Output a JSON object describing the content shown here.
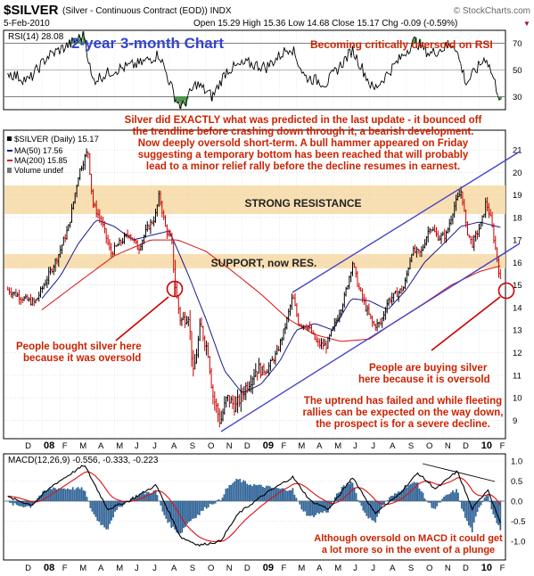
{
  "header": {
    "symbol": "$SILVER",
    "description": "(Silver - Continuous Contract (EOD)) INDX",
    "watermark": "© StockCharts.com",
    "date": "5-Feb-2010",
    "quote": "Open 15.29  High 15.36  Low 14.68  Close 15.17  Chg -0.09 (-0.59%)",
    "down_marker": "▼"
  },
  "rsi_panel": {
    "label": "RSI(14) 28.08",
    "ticks": [
      "70",
      "50",
      "30"
    ],
    "note": "Becoming critically oversold on RSI"
  },
  "price_panel": {
    "title_overlay": "2-year 3-month Chart",
    "legend": [
      "$SILVER (Daily) 15.17",
      "MA(50) 17.56",
      "MA(200) 15.85",
      "Volume undef"
    ],
    "resistance_label": "STRONG RESISTANCE",
    "support_label": "SUPPORT, now RES.",
    "y_ticks": [
      "21",
      "20",
      "19",
      "18",
      "17",
      "16",
      "15",
      "14",
      "13",
      "12",
      "11",
      "10",
      "9"
    ],
    "commentary": [
      "Silver did EXACTLY what was predicted in the last update - it bounced off",
      "the trendline before crashing down through it, a bearish development.",
      "Now deeply oversold short-term. A bull hammer appeared on Friday",
      "suggesting a temporary bottom has been reached that will probably",
      "lead to a minor relief rally before the decline resumes in earnest."
    ],
    "note_left": [
      "People bought silver here",
      "because it was oversold"
    ],
    "note_right": [
      "People are buying silver",
      "here because it is oversold"
    ],
    "note_uptrend": [
      "The uptrend has failed and while fleeting",
      "rallies can be expected on the way down,",
      "the prospect is for a severe decline."
    ]
  },
  "months": [
    "D",
    "08",
    "F",
    "M",
    "A",
    "M",
    "J",
    "J",
    "A",
    "S",
    "O",
    "N",
    "D",
    "09",
    "F",
    "M",
    "A",
    "M",
    "J",
    "J",
    "A",
    "S",
    "O",
    "N",
    "D",
    "10",
    "F"
  ],
  "macd_panel": {
    "label": "MACD(12,26,9) -0.556, -0.333, -0.223",
    "ticks": [
      "1.0",
      "0.5",
      "0.0",
      "-0.5",
      "-1.0"
    ],
    "note": [
      "Although oversold on MACD it could get",
      "a lot more so in the event of a plunge"
    ]
  },
  "colors": {
    "annotation": "#cc2200",
    "price_up": "#000000",
    "price_down": "#cc0000",
    "ma50": "#1a1a8c",
    "ma200": "#dd1111",
    "band": "#f7d9a4",
    "channel": "#4444cc",
    "title": "#3344cc",
    "histogram": "#336699",
    "rsi_fill": "#2e8b2e"
  },
  "chart_data": {
    "type": "line",
    "title": "2-year 3-month Chart",
    "x_range": [
      "2007-11",
      "2010-02-05"
    ],
    "series": [
      {
        "name": "$SILVER (Daily)",
        "points": [
          [
            "2007-11-05",
            14.8
          ],
          [
            "2007-12-01",
            14.4
          ],
          [
            "2007-12-20",
            14.2
          ],
          [
            "2008-01-10",
            15.3
          ],
          [
            "2008-01-28",
            16.3
          ],
          [
            "2008-02-15",
            17.6
          ],
          [
            "2008-03-03",
            20.0
          ],
          [
            "2008-03-12",
            20.6
          ],
          [
            "2008-03-18",
            21.0
          ],
          [
            "2008-03-26",
            18.6
          ],
          [
            "2008-04-10",
            17.8
          ],
          [
            "2008-04-25",
            16.4
          ],
          [
            "2008-05-08",
            16.8
          ],
          [
            "2008-05-26",
            17.3
          ],
          [
            "2008-06-10",
            16.6
          ],
          [
            "2008-06-25",
            17.5
          ],
          [
            "2008-07-08",
            18.0
          ],
          [
            "2008-07-15",
            19.0
          ],
          [
            "2008-07-25",
            17.6
          ],
          [
            "2008-08-05",
            16.8
          ],
          [
            "2008-08-12",
            14.6
          ],
          [
            "2008-08-20",
            13.4
          ],
          [
            "2008-09-02",
            13.7
          ],
          [
            "2008-09-10",
            11.0
          ],
          [
            "2008-09-22",
            13.2
          ],
          [
            "2008-10-05",
            12.0
          ],
          [
            "2008-10-12",
            10.2
          ],
          [
            "2008-10-25",
            8.9
          ],
          [
            "2008-11-05",
            10.0
          ],
          [
            "2008-11-20",
            9.6
          ],
          [
            "2008-12-05",
            10.4
          ],
          [
            "2008-12-25",
            11.3
          ],
          [
            "2009-01-10",
            11.2
          ],
          [
            "2009-01-28",
            12.0
          ],
          [
            "2009-02-10",
            13.1
          ],
          [
            "2009-02-23",
            14.5
          ],
          [
            "2009-03-05",
            13.3
          ],
          [
            "2009-03-20",
            13.2
          ],
          [
            "2009-04-05",
            12.4
          ],
          [
            "2009-04-20",
            12.3
          ],
          [
            "2009-05-05",
            13.3
          ],
          [
            "2009-05-20",
            14.4
          ],
          [
            "2009-06-03",
            16.0
          ],
          [
            "2009-06-12",
            15.0
          ],
          [
            "2009-06-25",
            14.0
          ],
          [
            "2009-07-08",
            13.2
          ],
          [
            "2009-07-20",
            13.3
          ],
          [
            "2009-08-01",
            14.3
          ],
          [
            "2009-08-15",
            14.6
          ],
          [
            "2009-08-28",
            14.9
          ],
          [
            "2009-09-10",
            16.5
          ],
          [
            "2009-09-25",
            16.4
          ],
          [
            "2009-10-10",
            17.6
          ],
          [
            "2009-10-25",
            17.1
          ],
          [
            "2009-11-06",
            17.2
          ],
          [
            "2009-11-20",
            18.5
          ],
          [
            "2009-12-02",
            19.2
          ],
          [
            "2009-12-10",
            17.5
          ],
          [
            "2009-12-20",
            16.8
          ],
          [
            "2010-01-05",
            17.8
          ],
          [
            "2010-01-12",
            18.7
          ],
          [
            "2010-01-20",
            17.9
          ],
          [
            "2010-01-28",
            16.6
          ],
          [
            "2010-02-05",
            15.17
          ]
        ]
      },
      {
        "name": "MA(50)",
        "points": [
          [
            "2008-01-01",
            14.4
          ],
          [
            "2008-02-01",
            15.4
          ],
          [
            "2008-03-01",
            16.8
          ],
          [
            "2008-04-01",
            17.9
          ],
          [
            "2008-05-01",
            17.6
          ],
          [
            "2008-06-01",
            17.0
          ],
          [
            "2008-07-01",
            17.2
          ],
          [
            "2008-08-01",
            17.4
          ],
          [
            "2008-09-01",
            15.5
          ],
          [
            "2008-10-01",
            13.5
          ],
          [
            "2008-11-01",
            11.2
          ],
          [
            "2008-12-01",
            10.2
          ],
          [
            "2009-01-01",
            10.6
          ],
          [
            "2009-02-01",
            11.6
          ],
          [
            "2009-03-01",
            13.0
          ],
          [
            "2009-04-01",
            13.3
          ],
          [
            "2009-05-01",
            13.0
          ],
          [
            "2009-06-01",
            14.4
          ],
          [
            "2009-07-01",
            14.3
          ],
          [
            "2009-08-01",
            13.9
          ],
          [
            "2009-09-01",
            14.8
          ],
          [
            "2009-10-01",
            16.0
          ],
          [
            "2009-11-01",
            16.8
          ],
          [
            "2009-12-01",
            17.6
          ],
          [
            "2010-01-01",
            17.8
          ],
          [
            "2010-02-05",
            17.56
          ]
        ]
      },
      {
        "name": "MA(200)",
        "points": [
          [
            "2008-01-01",
            13.9
          ],
          [
            "2008-03-01",
            15.1
          ],
          [
            "2008-05-01",
            16.3
          ],
          [
            "2008-07-01",
            17.0
          ],
          [
            "2008-08-15",
            17.0
          ],
          [
            "2008-10-01",
            16.5
          ],
          [
            "2008-11-15",
            15.6
          ],
          [
            "2009-01-01",
            14.6
          ],
          [
            "2009-02-15",
            13.5
          ],
          [
            "2009-04-01",
            12.8
          ],
          [
            "2009-05-15",
            12.5
          ],
          [
            "2009-07-01",
            12.6
          ],
          [
            "2009-08-15",
            13.4
          ],
          [
            "2009-10-01",
            14.2
          ],
          [
            "2009-11-15",
            15.0
          ],
          [
            "2010-01-01",
            15.6
          ],
          [
            "2010-02-05",
            15.85
          ]
        ]
      }
    ],
    "rsi": {
      "name": "RSI(14)",
      "ylim": [
        20,
        80
      ],
      "points": [
        [
          "2007-11-05",
          48
        ],
        [
          "2007-12-10",
          42
        ],
        [
          "2008-01-10",
          60
        ],
        [
          "2008-02-20",
          70
        ],
        [
          "2008-03-12",
          76
        ],
        [
          "2008-03-25",
          42
        ],
        [
          "2008-05-01",
          50
        ],
        [
          "2008-06-15",
          55
        ],
        [
          "2008-07-15",
          62
        ],
        [
          "2008-08-12",
          28
        ],
        [
          "2008-08-22",
          22
        ],
        [
          "2008-09-15",
          40
        ],
        [
          "2008-10-12",
          30
        ],
        [
          "2008-11-05",
          50
        ],
        [
          "2008-12-10",
          55
        ],
        [
          "2009-01-10",
          52
        ],
        [
          "2009-02-20",
          68
        ],
        [
          "2009-03-15",
          45
        ],
        [
          "2009-04-20",
          40
        ],
        [
          "2009-06-03",
          65
        ],
        [
          "2009-07-08",
          35
        ],
        [
          "2009-08-15",
          55
        ],
        [
          "2009-09-15",
          72
        ],
        [
          "2009-10-10",
          62
        ],
        [
          "2009-11-20",
          70
        ],
        [
          "2009-12-10",
          40
        ],
        [
          "2010-01-12",
          60
        ],
        [
          "2010-02-05",
          28.08
        ]
      ]
    },
    "macd": {
      "name": "MACD(12,26,9)",
      "ylim": [
        -1.2,
        1.2
      ],
      "points": [
        [
          "2007-11-05",
          0.1
        ],
        [
          "2007-12-15",
          -0.1
        ],
        [
          "2008-01-20",
          0.4
        ],
        [
          "2008-03-12",
          0.9
        ],
        [
          "2008-04-20",
          -0.2
        ],
        [
          "2008-05-25",
          0.0
        ],
        [
          "2008-07-10",
          0.4
        ],
        [
          "2008-08-20",
          -0.9
        ],
        [
          "2008-09-20",
          -1.1
        ],
        [
          "2008-10-25",
          -1.0
        ],
        [
          "2008-11-25",
          -0.3
        ],
        [
          "2009-01-10",
          0.2
        ],
        [
          "2009-02-23",
          0.6
        ],
        [
          "2009-03-25",
          0.0
        ],
        [
          "2009-04-25",
          -0.2
        ],
        [
          "2009-06-03",
          0.6
        ],
        [
          "2009-07-10",
          -0.3
        ],
        [
          "2009-08-15",
          0.1
        ],
        [
          "2009-09-20",
          0.7
        ],
        [
          "2009-10-20",
          0.3
        ],
        [
          "2009-11-25",
          0.75
        ],
        [
          "2009-12-20",
          -0.2
        ],
        [
          "2010-01-15",
          0.3
        ],
        [
          "2010-02-05",
          -0.556
        ]
      ]
    }
  }
}
